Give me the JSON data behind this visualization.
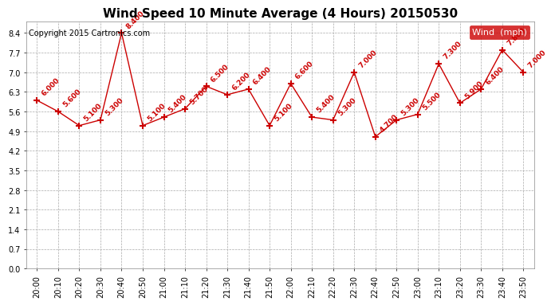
{
  "title": "Wind Speed 10 Minute Average (4 Hours) 20150530",
  "copyright": "Copyright 2015 Cartronics.com",
  "times": [
    "20:00",
    "20:10",
    "20:20",
    "20:30",
    "20:40",
    "20:50",
    "21:00",
    "21:10",
    "21:20",
    "21:30",
    "21:40",
    "21:50",
    "22:00",
    "22:10",
    "22:20",
    "22:30",
    "22:40",
    "22:50",
    "23:00",
    "23:10",
    "23:20",
    "23:30",
    "23:40",
    "23:50"
  ],
  "values": [
    6.0,
    5.6,
    5.1,
    5.3,
    8.4,
    5.1,
    5.4,
    5.7,
    6.5,
    6.2,
    6.4,
    5.1,
    6.6,
    5.4,
    5.3,
    7.0,
    4.7,
    5.3,
    5.5,
    7.3,
    5.9,
    6.4,
    7.8,
    7.0
  ],
  "value_labels": [
    "6.000",
    "5.600",
    "5.100",
    "5.300",
    "8.400",
    "5.100",
    "5.400",
    "5.700",
    "6.500",
    "6.200",
    "6.400",
    "5.100",
    "6.600",
    "5.400",
    "5.300",
    "7.000",
    "4.700",
    "5.300",
    "5.500",
    "7.300",
    "5.900",
    "6.400",
    "7.800",
    "7.000"
  ],
  "yticks": [
    0.0,
    0.7,
    1.4,
    2.1,
    2.8,
    3.5,
    4.2,
    4.9,
    5.6,
    6.3,
    7.0,
    7.7,
    8.4
  ],
  "ylim_min": 0.0,
  "ylim_max": 8.82,
  "line_color": "#cc0000",
  "marker_color": "#cc0000",
  "label_color": "#cc0000",
  "bg_color": "#ffffff",
  "grid_color": "#aaaaaa",
  "legend_label": "Wind  (mph)",
  "legend_bg": "#cc0000",
  "legend_text_color": "#ffffff",
  "title_fontsize": 11,
  "copyright_fontsize": 7,
  "label_fontsize": 6.5,
  "tick_fontsize": 7
}
